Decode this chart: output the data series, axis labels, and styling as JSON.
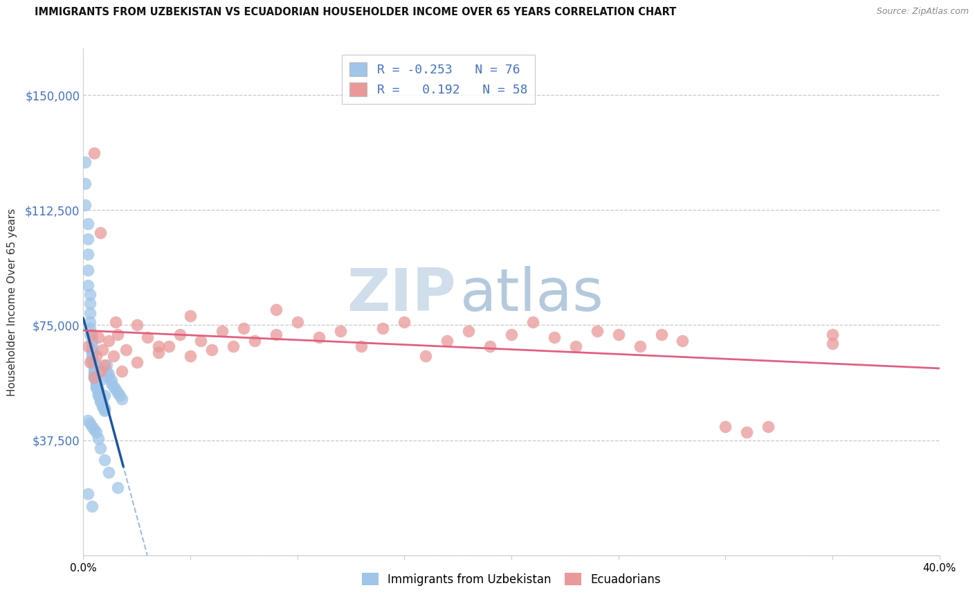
{
  "title": "IMMIGRANTS FROM UZBEKISTAN VS ECUADORIAN HOUSEHOLDER INCOME OVER 65 YEARS CORRELATION CHART",
  "source": "Source: ZipAtlas.com",
  "ylabel": "Householder Income Over 65 years",
  "x_min": 0.0,
  "x_max": 0.4,
  "y_min": 0,
  "y_max": 165000,
  "y_ticks": [
    0,
    37500,
    75000,
    112500,
    150000
  ],
  "y_tick_labels": [
    "",
    "$37,500",
    "$75,000",
    "$112,500",
    "$150,000"
  ],
  "x_ticks": [
    0.0,
    0.05,
    0.1,
    0.15,
    0.2,
    0.25,
    0.3,
    0.35,
    0.4
  ],
  "x_tick_labels_show": [
    "0.0%",
    "",
    "",
    "",
    "",
    "",
    "",
    "",
    "40.0%"
  ],
  "color_blue": "#9fc5e8",
  "color_pink": "#ea9999",
  "color_blue_line": "#1a56a0",
  "color_pink_line": "#e06080",
  "watermark_line1": "ZIP",
  "watermark_line2": "atlas",
  "watermark_color": "#d0dff0",
  "blue_r": "-0.253",
  "blue_n": "76",
  "pink_r": "0.192",
  "pink_n": "58",
  "blue_x": [
    0.001,
    0.001,
    0.001,
    0.002,
    0.002,
    0.002,
    0.002,
    0.002,
    0.003,
    0.003,
    0.003,
    0.003,
    0.003,
    0.003,
    0.004,
    0.004,
    0.004,
    0.004,
    0.004,
    0.004,
    0.004,
    0.005,
    0.005,
    0.005,
    0.005,
    0.005,
    0.005,
    0.006,
    0.006,
    0.006,
    0.006,
    0.006,
    0.006,
    0.006,
    0.007,
    0.007,
    0.007,
    0.007,
    0.007,
    0.008,
    0.008,
    0.008,
    0.008,
    0.009,
    0.009,
    0.009,
    0.01,
    0.01,
    0.01,
    0.011,
    0.011,
    0.012,
    0.012,
    0.013,
    0.013,
    0.014,
    0.015,
    0.016,
    0.017,
    0.018,
    0.002,
    0.003,
    0.004,
    0.005,
    0.006,
    0.007,
    0.008,
    0.01,
    0.012,
    0.016,
    0.004,
    0.006,
    0.008,
    0.01,
    0.002,
    0.004
  ],
  "blue_y": [
    128000,
    121000,
    114000,
    108000,
    103000,
    98000,
    93000,
    88000,
    85000,
    82000,
    79000,
    76000,
    74000,
    72000,
    70000,
    68000,
    67000,
    66000,
    65000,
    64000,
    63000,
    62000,
    61000,
    60000,
    59000,
    58500,
    58000,
    57500,
    57000,
    56500,
    56000,
    55500,
    55000,
    54500,
    54000,
    53500,
    53000,
    52500,
    52000,
    51500,
    51000,
    50500,
    50000,
    49500,
    49000,
    48500,
    48000,
    47500,
    47000,
    62000,
    60000,
    59000,
    58000,
    57000,
    56000,
    55000,
    54000,
    53000,
    52000,
    51000,
    44000,
    43000,
    42000,
    41000,
    40000,
    38000,
    35000,
    31000,
    27000,
    22000,
    66000,
    62000,
    57000,
    52000,
    20000,
    16000
  ],
  "pink_x": [
    0.002,
    0.003,
    0.004,
    0.005,
    0.006,
    0.007,
    0.008,
    0.009,
    0.01,
    0.012,
    0.014,
    0.016,
    0.018,
    0.02,
    0.025,
    0.03,
    0.035,
    0.04,
    0.045,
    0.05,
    0.055,
    0.06,
    0.065,
    0.07,
    0.075,
    0.08,
    0.09,
    0.1,
    0.11,
    0.12,
    0.13,
    0.14,
    0.15,
    0.16,
    0.17,
    0.18,
    0.19,
    0.2,
    0.21,
    0.22,
    0.23,
    0.24,
    0.25,
    0.26,
    0.27,
    0.28,
    0.3,
    0.31,
    0.32,
    0.35,
    0.005,
    0.008,
    0.015,
    0.025,
    0.035,
    0.05,
    0.09,
    0.35
  ],
  "pink_y": [
    68000,
    63000,
    72000,
    58000,
    65000,
    71000,
    60000,
    67000,
    62000,
    70000,
    65000,
    72000,
    60000,
    67000,
    63000,
    71000,
    66000,
    68000,
    72000,
    65000,
    70000,
    67000,
    73000,
    68000,
    74000,
    70000,
    72000,
    76000,
    71000,
    73000,
    68000,
    74000,
    76000,
    65000,
    70000,
    73000,
    68000,
    72000,
    76000,
    71000,
    68000,
    73000,
    72000,
    68000,
    72000,
    70000,
    42000,
    40000,
    42000,
    72000,
    131000,
    105000,
    76000,
    75000,
    68000,
    78000,
    80000,
    69000
  ]
}
